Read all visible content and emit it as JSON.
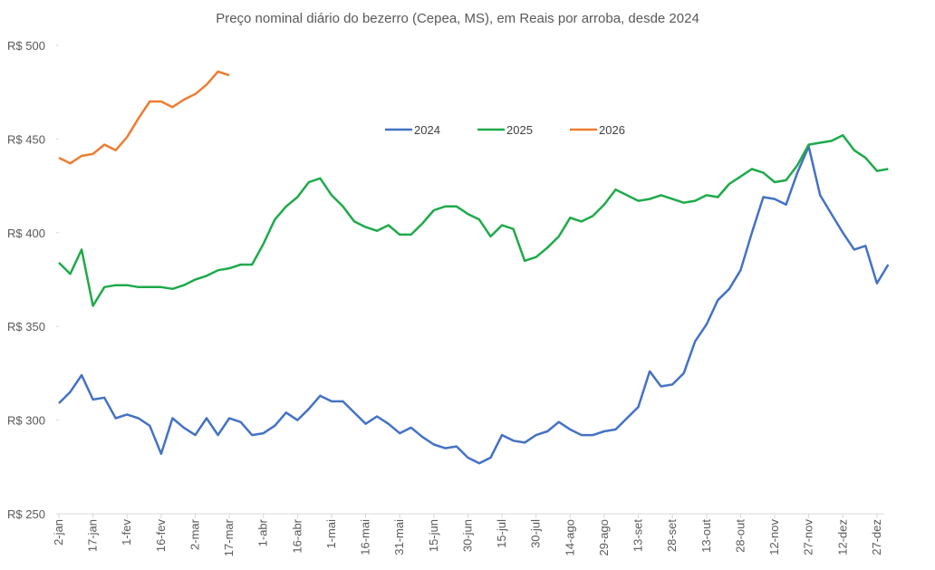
{
  "chart_data": {
    "type": "line",
    "title": "Preço nominal diário do bezerro (Cepea, MS), em Reais por arroba, desde 2024",
    "categories": [
      "2-jan",
      null,
      null,
      "17-jan",
      null,
      null,
      "1-fev",
      null,
      null,
      "16-fev",
      null,
      null,
      "2-mar",
      null,
      null,
      "17-mar",
      null,
      null,
      "1-abr",
      null,
      null,
      "16-abr",
      null,
      null,
      "1-mai",
      null,
      null,
      "16-mai",
      null,
      null,
      "31-mai",
      null,
      null,
      "15-jun",
      null,
      null,
      "30-jun",
      null,
      null,
      "15-jul",
      null,
      null,
      "30-jul",
      null,
      null,
      "14-ago",
      null,
      null,
      "29-ago",
      null,
      null,
      "13-set",
      null,
      null,
      "28-set",
      null,
      null,
      "13-out",
      null,
      null,
      "28-out",
      null,
      null,
      "12-nov",
      null,
      null,
      "27-nov",
      null,
      null,
      "12-dez",
      null,
      null,
      "27-dez",
      null
    ],
    "series": [
      {
        "name": "2024",
        "color": "#4472c4",
        "values": [
          309,
          315,
          324,
          311,
          312,
          301,
          303,
          301,
          297,
          282,
          301,
          296,
          292,
          301,
          292,
          301,
          299,
          292,
          293,
          297,
          304,
          300,
          306,
          313,
          310,
          310,
          304,
          298,
          302,
          298,
          293,
          296,
          291,
          287,
          285,
          286,
          280,
          277,
          280,
          292,
          289,
          288,
          292,
          294,
          299,
          295,
          292,
          292,
          294,
          295,
          301,
          307,
          326,
          318,
          319,
          325,
          342,
          351,
          364,
          370,
          380,
          400,
          419,
          418,
          415,
          432,
          446,
          420,
          410,
          400,
          391,
          393,
          373,
          383
        ]
      },
      {
        "name": "2025",
        "color": "#1faa4b",
        "values": [
          384,
          378,
          391,
          361,
          371,
          372,
          372,
          371,
          371,
          371,
          370,
          372,
          375,
          377,
          380,
          381,
          383,
          383,
          394,
          407,
          414,
          419,
          427,
          429,
          420,
          414,
          406,
          403,
          401,
          404,
          399,
          399,
          405,
          412,
          414,
          414,
          410,
          407,
          398,
          404,
          402,
          385,
          387,
          392,
          398,
          408,
          406,
          409,
          415,
          423,
          420,
          417,
          418,
          420,
          418,
          416,
          417,
          420,
          419,
          426,
          430,
          434,
          432,
          427,
          428,
          436,
          447,
          448,
          449,
          452,
          444,
          440,
          433,
          434
        ]
      },
      {
        "name": "2026",
        "color": "#ed7d31",
        "values": [
          440,
          437,
          441,
          442,
          447,
          444,
          451,
          461,
          470,
          470,
          467,
          471,
          474,
          479,
          486,
          484,
          null,
          null,
          null,
          null,
          null,
          null,
          null,
          null,
          null,
          null,
          null,
          null,
          null,
          null,
          null,
          null,
          null,
          null,
          null,
          null,
          null,
          null,
          null,
          null,
          null,
          null,
          null,
          null,
          null,
          null,
          null,
          null,
          null,
          null,
          null,
          null,
          null,
          null,
          null,
          null,
          null,
          null,
          null,
          null,
          null,
          null,
          null,
          null,
          null,
          null,
          null,
          null,
          null,
          null,
          null,
          null,
          null,
          null
        ]
      }
    ],
    "ylim": [
      250,
      500
    ],
    "yticks": [
      {
        "value": 250,
        "label": "R$ 250"
      },
      {
        "value": 300,
        "label": "R$ 300"
      },
      {
        "value": 350,
        "label": "R$ 350"
      },
      {
        "value": 400,
        "label": "R$ 400"
      },
      {
        "value": 450,
        "label": "R$ 450"
      },
      {
        "value": 500,
        "label": "R$ 500"
      }
    ],
    "legend": "top"
  }
}
